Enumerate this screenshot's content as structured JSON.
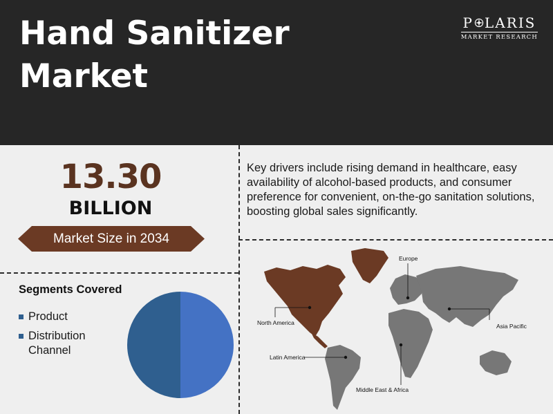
{
  "header": {
    "title_line1": "Hand Sanitizer",
    "title_line2": "Market",
    "logo_left": "P",
    "logo_right": "LARIS",
    "logo_sub": "MARKET RESEARCH"
  },
  "market": {
    "value": "13.30",
    "unit": "BILLION",
    "banner": "Market Size in 2034"
  },
  "drivers": {
    "text": "Key drivers include rising demand in healthcare, easy availability of alcohol-based products, and consumer preference for convenient, on-the-go sanitation solutions, boosting global sales significantly."
  },
  "segments": {
    "title": "Segments Covered",
    "items": [
      "Product",
      "Distribution Channel"
    ]
  },
  "chart_data": {
    "type": "pie",
    "categories": [
      "Product",
      "Distribution Channel"
    ],
    "values": [
      50,
      50
    ],
    "colors": [
      "#4472c4",
      "#2f5f8f"
    ]
  },
  "map": {
    "regions": [
      "North America",
      "Europe",
      "Asia Pacific",
      "Latin America",
      "Middle East & Africa"
    ],
    "highlight_color": "#6b3a24",
    "base_color": "#777777"
  }
}
